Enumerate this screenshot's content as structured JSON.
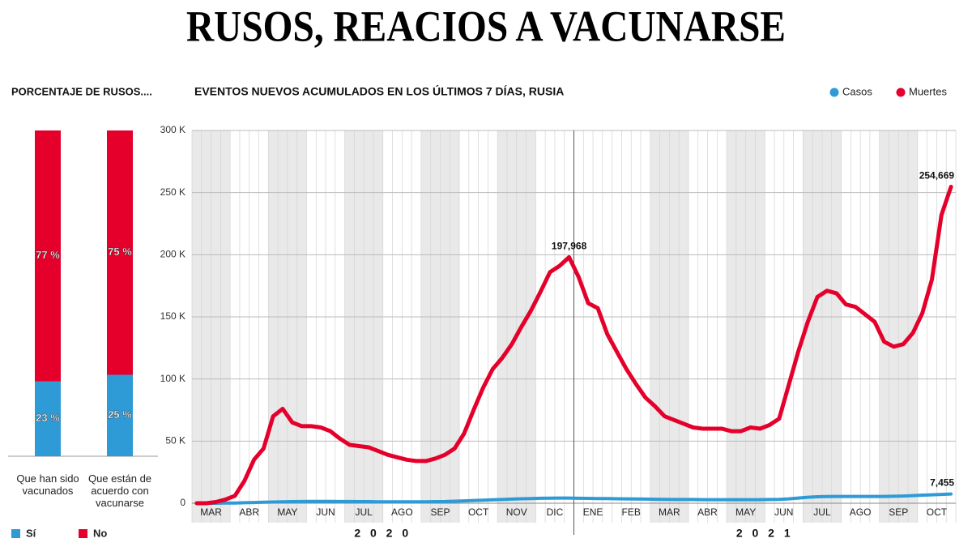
{
  "title": "RUSOS, REACIOS A VACUNARSE",
  "chart_data": [
    {
      "type": "stacked_bar",
      "title": "PORCENTAJE DE RUSOS....",
      "categories": [
        "Que han sido vacunados",
        "Que están de acuerdo con vacunarse"
      ],
      "series": [
        {
          "name": "Sí",
          "color": "#2e9bd6",
          "values": [
            23,
            25
          ],
          "value_labels": [
            "23 %",
            "25 %"
          ]
        },
        {
          "name": "No",
          "color": "#e4002b",
          "values": [
            77,
            75
          ],
          "value_labels": [
            "77 %",
            "75 %"
          ]
        }
      ],
      "ylim": [
        0,
        100
      ],
      "legend": "bottom"
    },
    {
      "type": "line",
      "title": "EVENTOS NUEVOS ACUMULADOS EN LOS ÚLTIMOS 7 DÍAS, RUSIA",
      "categories": [
        null,
        "MAR",
        null,
        null,
        null,
        "ABR",
        null,
        null,
        null,
        "MAY",
        null,
        null,
        null,
        "JUN",
        null,
        null,
        null,
        "JUL",
        null,
        null,
        null,
        "AGO",
        null,
        null,
        null,
        "SEP",
        null,
        null,
        null,
        "OCT",
        null,
        null,
        null,
        "NOV",
        null,
        null,
        null,
        "DIC",
        null,
        null,
        null,
        "ENE",
        null,
        null,
        null,
        "FEB",
        null,
        null,
        null,
        "MAR",
        null,
        null,
        null,
        "ABR",
        null,
        null,
        null,
        "MAY",
        null,
        null,
        null,
        "JUN",
        null,
        null,
        null,
        "JUL",
        null,
        null,
        null,
        "AGO",
        null,
        null,
        null,
        "SEP",
        null,
        null,
        null,
        "OCT",
        null,
        null
      ],
      "years": [
        "2 0 2 0",
        "2 0 2 1"
      ],
      "series": [
        {
          "name": "Casos",
          "color": "#2e9bd6",
          "values": [
            0,
            0,
            0,
            100,
            200,
            400,
            600,
            800,
            1000,
            1200,
            1300,
            1400,
            1500,
            1500,
            1500,
            1400,
            1400,
            1300,
            1300,
            1200,
            1200,
            1200,
            1200,
            1200,
            1200,
            1300,
            1400,
            1600,
            1900,
            2200,
            2500,
            2800,
            3000,
            3300,
            3600,
            3800,
            4000,
            4100,
            4200,
            4200,
            4000,
            3900,
            3800,
            3700,
            3600,
            3500,
            3400,
            3300,
            3200,
            3100,
            3000,
            3000,
            3000,
            2900,
            2900,
            2900,
            2900,
            2900,
            2900,
            2900,
            3000,
            3100,
            3500,
            4200,
            4800,
            5200,
            5400,
            5500,
            5500,
            5500,
            5500,
            5500,
            5500,
            5600,
            5800,
            6100,
            6500,
            6800,
            7100,
            7455
          ],
          "value_labels": [
            null,
            null,
            null,
            null,
            null,
            null,
            null,
            null,
            null,
            null,
            null,
            null,
            null,
            null,
            null,
            null,
            null,
            null,
            null,
            null,
            null,
            null,
            null,
            null,
            null,
            null,
            null,
            null,
            null,
            null,
            null,
            null,
            null,
            null,
            null,
            null,
            null,
            null,
            null,
            null,
            null,
            null,
            null,
            null,
            null,
            null,
            null,
            null,
            null,
            null,
            null,
            null,
            null,
            null,
            null,
            null,
            null,
            null,
            null,
            null,
            null,
            null,
            null,
            null,
            null,
            null,
            null,
            null,
            null,
            null,
            null,
            null,
            null,
            null,
            null,
            null,
            null,
            null,
            null,
            "7,455"
          ]
        },
        {
          "name": "Muertes",
          "color": "#e4002b",
          "values": [
            0,
            0,
            1000,
            3000,
            6000,
            18000,
            35000,
            44000,
            70000,
            76000,
            65000,
            62000,
            62000,
            61000,
            58000,
            52000,
            47000,
            46000,
            45000,
            42000,
            39000,
            37000,
            35000,
            34000,
            34000,
            36000,
            39000,
            44000,
            56000,
            75000,
            93000,
            108000,
            117000,
            128000,
            142000,
            155000,
            170000,
            186000,
            191000,
            197968,
            182000,
            161000,
            157000,
            136000,
            122000,
            108000,
            96000,
            85000,
            78000,
            70000,
            67000,
            64000,
            61000,
            60000,
            60000,
            60000,
            58000,
            58000,
            61000,
            60000,
            63000,
            68000,
            95000,
            122000,
            146000,
            166000,
            171000,
            169000,
            160000,
            158000,
            152000,
            146000,
            130000,
            126000,
            128000,
            137000,
            153000,
            180000,
            232000,
            254669
          ],
          "value_labels": [
            null,
            null,
            null,
            null,
            null,
            null,
            null,
            null,
            null,
            null,
            null,
            null,
            null,
            null,
            null,
            null,
            null,
            null,
            null,
            null,
            null,
            null,
            null,
            null,
            null,
            null,
            null,
            null,
            null,
            null,
            null,
            null,
            null,
            null,
            null,
            null,
            null,
            null,
            null,
            "197,968",
            null,
            null,
            null,
            null,
            null,
            null,
            null,
            null,
            null,
            null,
            null,
            null,
            null,
            null,
            null,
            null,
            null,
            null,
            null,
            null,
            null,
            null,
            null,
            null,
            null,
            null,
            null,
            null,
            null,
            null,
            null,
            null,
            null,
            null,
            null,
            null,
            null,
            null,
            null,
            "254,669"
          ]
        }
      ],
      "ylim": [
        0,
        300000
      ],
      "yticks": [
        0,
        {
          "value": 50000,
          "label": "50 K"
        },
        {
          "value": 100000,
          "label": "100 K"
        },
        {
          "value": 150000,
          "label": "150 K"
        },
        {
          "value": 200000,
          "label": "200 K"
        },
        {
          "value": 250000,
          "label": "250 K"
        },
        {
          "value": 300000,
          "label": "300 K"
        }
      ],
      "grid": true,
      "legend": "top-right"
    }
  ]
}
